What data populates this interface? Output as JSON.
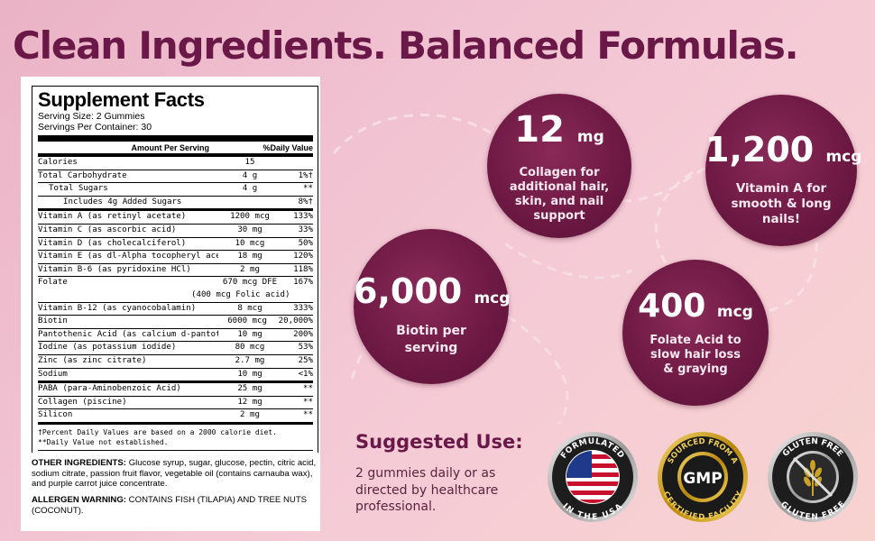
{
  "headline": "Clean Ingredients. Balanced Formulas.",
  "facts": {
    "title": "Supplement Facts",
    "serving_size": "Serving Size: 2 Gummies",
    "servings_per_container": "Servings Per Container: 30",
    "col_amount": "Amount Per Serving",
    "col_dv": "%Daily Value",
    "rows": [
      {
        "name": "Calories",
        "amount": "15",
        "dv": ""
      },
      {
        "name": "Total Carbohydrate",
        "amount": "4 g",
        "dv": "1%†"
      },
      {
        "name": "Total Sugars",
        "amount": "4 g",
        "dv": "**"
      },
      {
        "name": "Includes 4g Added Sugars",
        "amount": "",
        "dv": "8%†"
      },
      {
        "name": "Vitamin A (as retinyl acetate)",
        "amount": "1200 mcg",
        "dv": "133%"
      },
      {
        "name": "Vitamin C (as ascorbic acid)",
        "amount": "30 mg",
        "dv": "33%"
      },
      {
        "name": "Vitamin D (as cholecalciferol)",
        "amount": "10 mcg",
        "dv": "50%"
      },
      {
        "name": "Vitamin E (as dl-Alpha tocopheryl acetate)",
        "amount": "18 mg",
        "dv": "120%"
      },
      {
        "name": "Vitamin B-6 (as pyridoxine HCl)",
        "amount": "2 mg",
        "dv": "118%"
      },
      {
        "name": "Folate",
        "amount": "670 mcg DFE",
        "dv": "167%"
      },
      {
        "name": "",
        "amount": "(400 mcg Folic acid)",
        "dv": ""
      },
      {
        "name": "Vitamin B-12 (as cyanocobalamin)",
        "amount": "8 mcg",
        "dv": "333%"
      },
      {
        "name": "Biotin",
        "amount": "6000 mcg",
        "dv": "20,000%"
      },
      {
        "name": "Pantothenic Acid (as calcium d-pantothenate)",
        "amount": "10 mg",
        "dv": "200%"
      },
      {
        "name": "Iodine (as potassium iodide)",
        "amount": "80 mcg",
        "dv": "53%"
      },
      {
        "name": "Zinc (as zinc citrate)",
        "amount": "2.7 mg",
        "dv": "25%"
      },
      {
        "name": "Sodium",
        "amount": "10 mg",
        "dv": "<1%"
      },
      {
        "name": "PABA (para-Aminobenzoic Acid)",
        "amount": "25 mg",
        "dv": "**"
      },
      {
        "name": "Collagen (piscine)",
        "amount": "12 mg",
        "dv": "**"
      },
      {
        "name": "Silicon",
        "amount": "2 mg",
        "dv": "**"
      }
    ],
    "note1": "†Percent Daily Values are based on a 2000 calorie diet.",
    "note2": "**Daily Value not established.",
    "other_label": "OTHER INGREDIENTS:",
    "other_text": "Glucose syrup, sugar, glucose, pectin, citric acid, sodium citrate, passion fruit flavor, vegetable oil (contains carnauba wax), and purple carrot juice concentrate.",
    "allergen_label": "ALLERGEN WARNING:",
    "allergen_text": "CONTAINS FISH (TILAPIA) AND TREE NUTS (COCONUT)."
  },
  "highlights": {
    "collagen": {
      "amount": "12",
      "unit": "mg",
      "desc": "Collagen for additional hair, skin, and nail support"
    },
    "vitamin_a": {
      "amount": "1,200",
      "unit": "mcg",
      "desc": "Vitamin A for smooth & long nails!"
    },
    "biotin": {
      "amount": "6,000",
      "unit": "mcg",
      "desc": "Biotin per serving"
    },
    "folate": {
      "amount": "400",
      "unit": "mcg",
      "desc": "Folate Acid to slow hair loss & graying"
    }
  },
  "suggested": {
    "title": "Suggested Use:",
    "text": "2 gummies daily or as directed by healthcare professional."
  },
  "badges": {
    "usa": {
      "top": "FORMULATED",
      "bottom": "IN THE USA"
    },
    "gmp": {
      "top": "SOURCED FROM A",
      "center": "GMP",
      "bottom": "CERTIFIED FACILITY"
    },
    "gluten": {
      "text": "GLUTEN FREE"
    }
  },
  "colors": {
    "brand": "#6a1848",
    "circle": "#6e1a44",
    "gold": "#c9a227"
  }
}
